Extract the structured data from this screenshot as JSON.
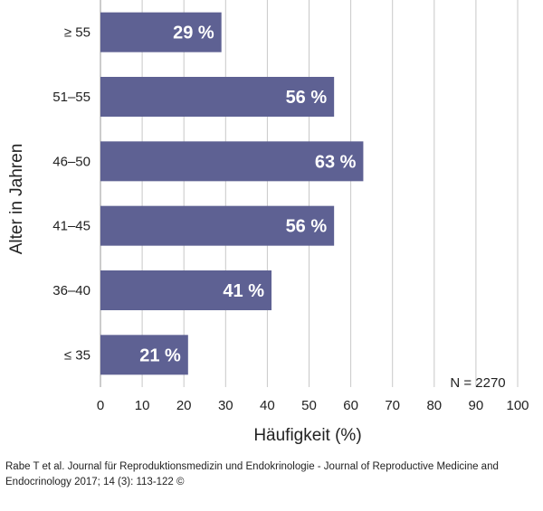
{
  "chart_data": {
    "type": "bar",
    "orientation": "horizontal",
    "categories": [
      "≥ 55",
      "51–55",
      "46–50",
      "41–45",
      "36–40",
      "≤ 35"
    ],
    "values": [
      29,
      56,
      63,
      56,
      41,
      21
    ],
    "value_labels": [
      "29 %",
      "56 %",
      "63 %",
      "56 %",
      "41 %",
      "21 %"
    ],
    "xlabel": "Häufigkeit (%)",
    "ylabel": "Alter in Jahren",
    "xlim": [
      0,
      100
    ],
    "x_ticks": [
      0,
      10,
      20,
      30,
      40,
      50,
      60,
      70,
      80,
      90,
      100
    ],
    "grid": "vertical",
    "annotation": "N = 2270",
    "bar_color": "#5e6193",
    "grid_color": "#c8c8c8"
  },
  "source": "Rabe T et al. Journal für Reproduktionsmedizin und Endokrinologie - Journal of Reproductive Medicine and Endocrinology 2017; 14 (3): 113-122 ©"
}
